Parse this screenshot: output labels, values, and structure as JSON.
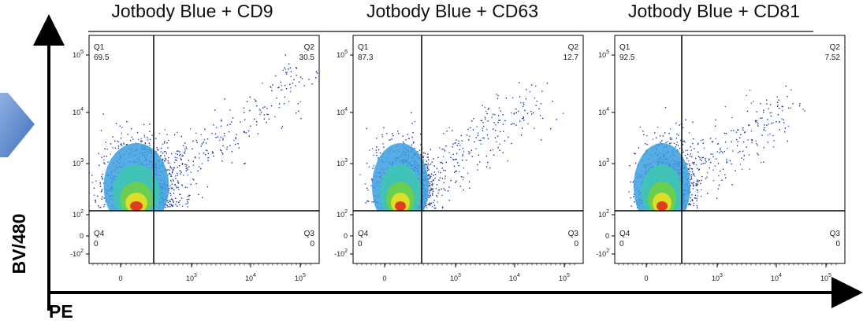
{
  "axes": {
    "y_label": "BV/480",
    "x_label": "PE"
  },
  "y_ticks": [
    {
      "base": "10",
      "exp": "5"
    },
    {
      "base": "10",
      "exp": "4"
    },
    {
      "base": "10",
      "exp": "3"
    },
    {
      "base": "10",
      "exp": "2"
    },
    {
      "base": "0"
    },
    {
      "base": "-10",
      "exp": "2"
    }
  ],
  "x_ticks": [
    {
      "base": "0"
    },
    {
      "base": "10",
      "exp": "3"
    },
    {
      "base": "10",
      "exp": "4"
    },
    {
      "base": "10",
      "exp": "5"
    }
  ],
  "panels": [
    {
      "title": "Jotbody Blue + CD9",
      "quadrants": [
        {
          "name": "Q1",
          "value": 69.5
        },
        {
          "name": "Q2",
          "value": 30.5
        },
        {
          "name": "Q3",
          "value": 0
        },
        {
          "name": "Q4",
          "value": 0
        }
      ]
    },
    {
      "title": "Jotbody Blue + CD63",
      "quadrants": [
        {
          "name": "Q1",
          "value": 87.3
        },
        {
          "name": "Q2",
          "value": 12.7
        },
        {
          "name": "Q3",
          "value": 0
        },
        {
          "name": "Q4",
          "value": 0
        }
      ]
    },
    {
      "title": "Jotbody Blue + CD81",
      "quadrants": [
        {
          "name": "Q1",
          "value": 92.5
        },
        {
          "name": "Q2",
          "value": 7.52
        },
        {
          "name": "Q3",
          "value": 0
        },
        {
          "name": "Q4",
          "value": 0
        }
      ]
    }
  ]
}
